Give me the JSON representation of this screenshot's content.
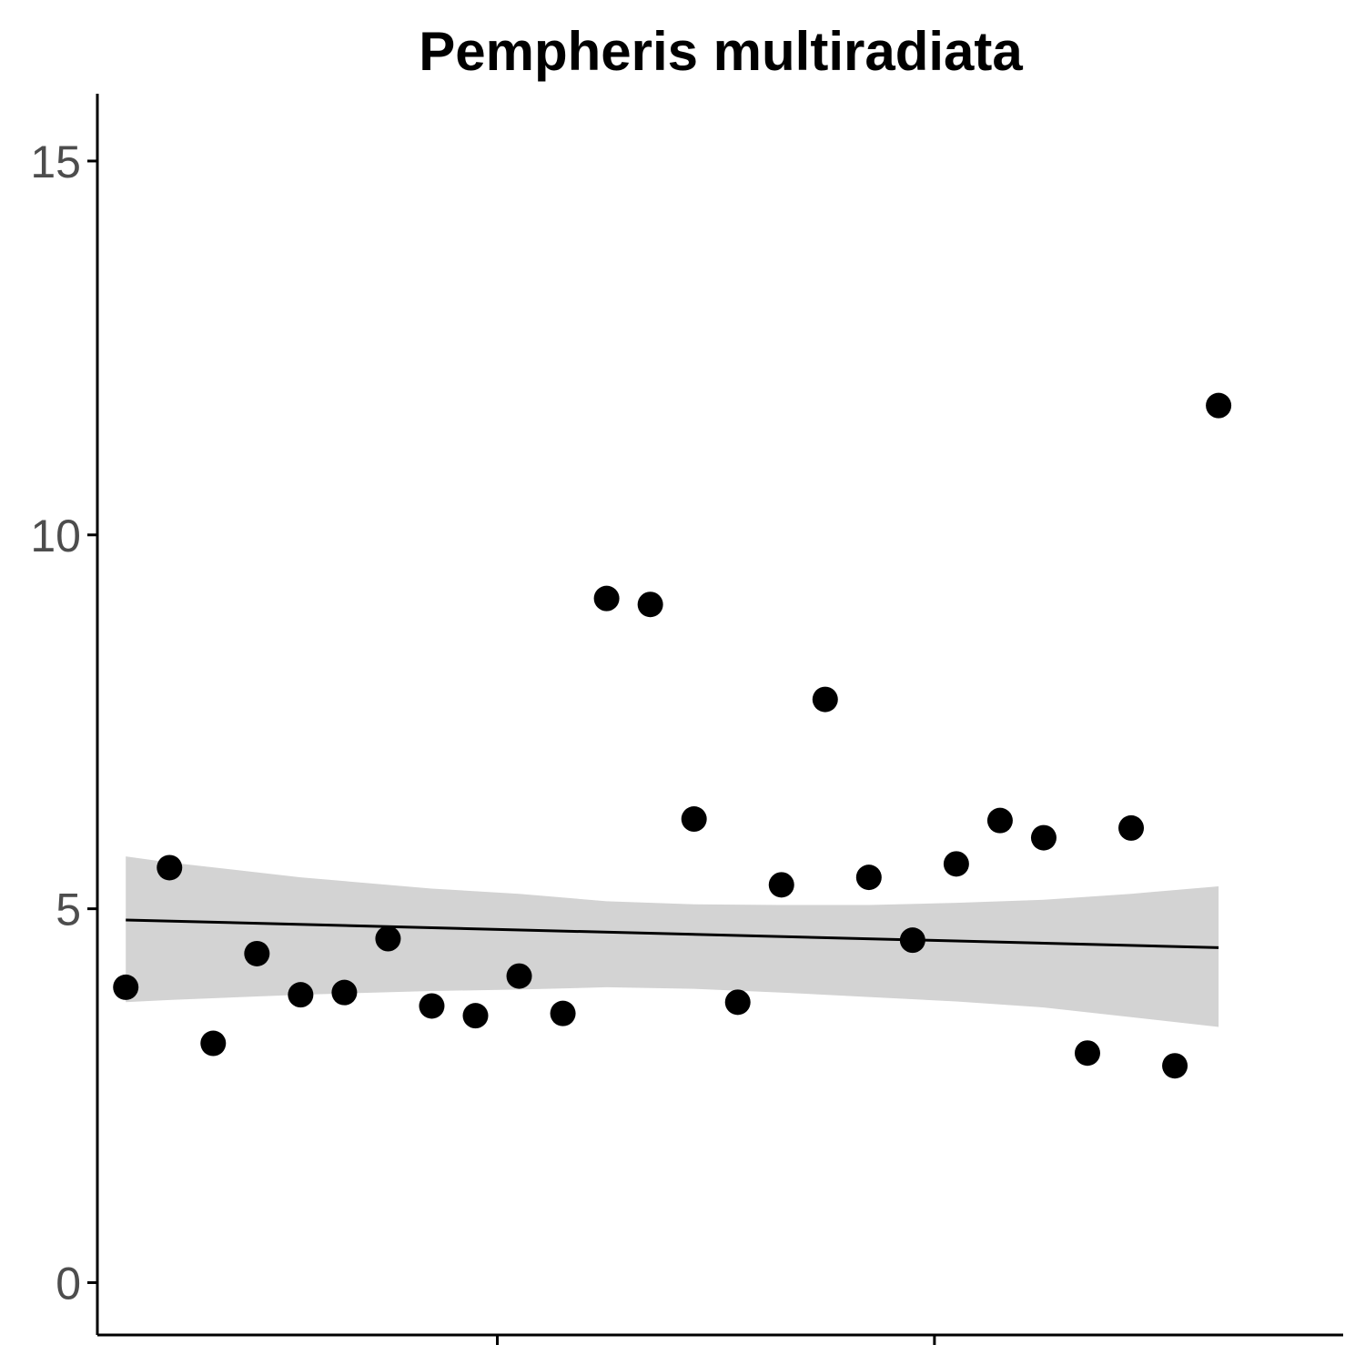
{
  "chart_data": {
    "type": "scatter",
    "title": "Pempheris multiradiata",
    "xlabel": "",
    "ylabel": "",
    "ylim": [
      -0.7,
      15.9
    ],
    "xlim": [
      0.35,
      28.85
    ],
    "y_ticks": [
      0,
      5,
      10,
      15
    ],
    "x_ticks": [
      9.5,
      19.5
    ],
    "x_tick_labels": [
      "",
      ""
    ],
    "grid": false,
    "legend": "none",
    "series": [
      {
        "values": [
          {
            "x": 1,
            "y": 3.95
          },
          {
            "x": 2,
            "y": 5.55
          },
          {
            "x": 3,
            "y": 3.2
          },
          {
            "x": 4,
            "y": 4.4
          },
          {
            "x": 5,
            "y": 3.85
          },
          {
            "x": 6,
            "y": 3.88
          },
          {
            "x": 7,
            "y": 4.6
          },
          {
            "x": 8,
            "y": 3.7
          },
          {
            "x": 9,
            "y": 3.57
          },
          {
            "x": 10,
            "y": 4.1
          },
          {
            "x": 11,
            "y": 3.6
          },
          {
            "x": 12,
            "y": 9.15
          },
          {
            "x": 13,
            "y": 9.07
          },
          {
            "x": 14,
            "y": 6.2
          },
          {
            "x": 15,
            "y": 3.75
          },
          {
            "x": 16,
            "y": 5.32
          },
          {
            "x": 17,
            "y": 7.8
          },
          {
            "x": 18,
            "y": 5.42
          },
          {
            "x": 19,
            "y": 4.58
          },
          {
            "x": 20,
            "y": 5.6
          },
          {
            "x": 21,
            "y": 6.18
          },
          {
            "x": 22,
            "y": 5.95
          },
          {
            "x": 23,
            "y": 3.07
          },
          {
            "x": 24,
            "y": 6.08
          },
          {
            "x": 25,
            "y": 2.9
          },
          {
            "x": 26,
            "y": 11.73
          }
        ]
      }
    ],
    "trend": {
      "x": [
        1,
        26
      ],
      "y": [
        4.85,
        4.48
      ],
      "band_x": [
        1,
        2,
        5,
        8,
        10,
        12,
        14,
        16,
        18,
        20,
        22,
        24,
        26
      ],
      "band_lower": [
        3.75,
        3.78,
        3.85,
        3.9,
        3.92,
        3.95,
        3.93,
        3.88,
        3.82,
        3.76,
        3.68,
        3.55,
        3.42
      ],
      "band_upper": [
        5.7,
        5.62,
        5.42,
        5.27,
        5.2,
        5.1,
        5.06,
        5.05,
        5.05,
        5.08,
        5.12,
        5.2,
        5.3
      ]
    },
    "colors": {
      "points": "#000000",
      "trend_line": "#000000",
      "band": "#d3d3d3",
      "axis": "#000000",
      "tick_label": "#4d4d4d"
    }
  }
}
